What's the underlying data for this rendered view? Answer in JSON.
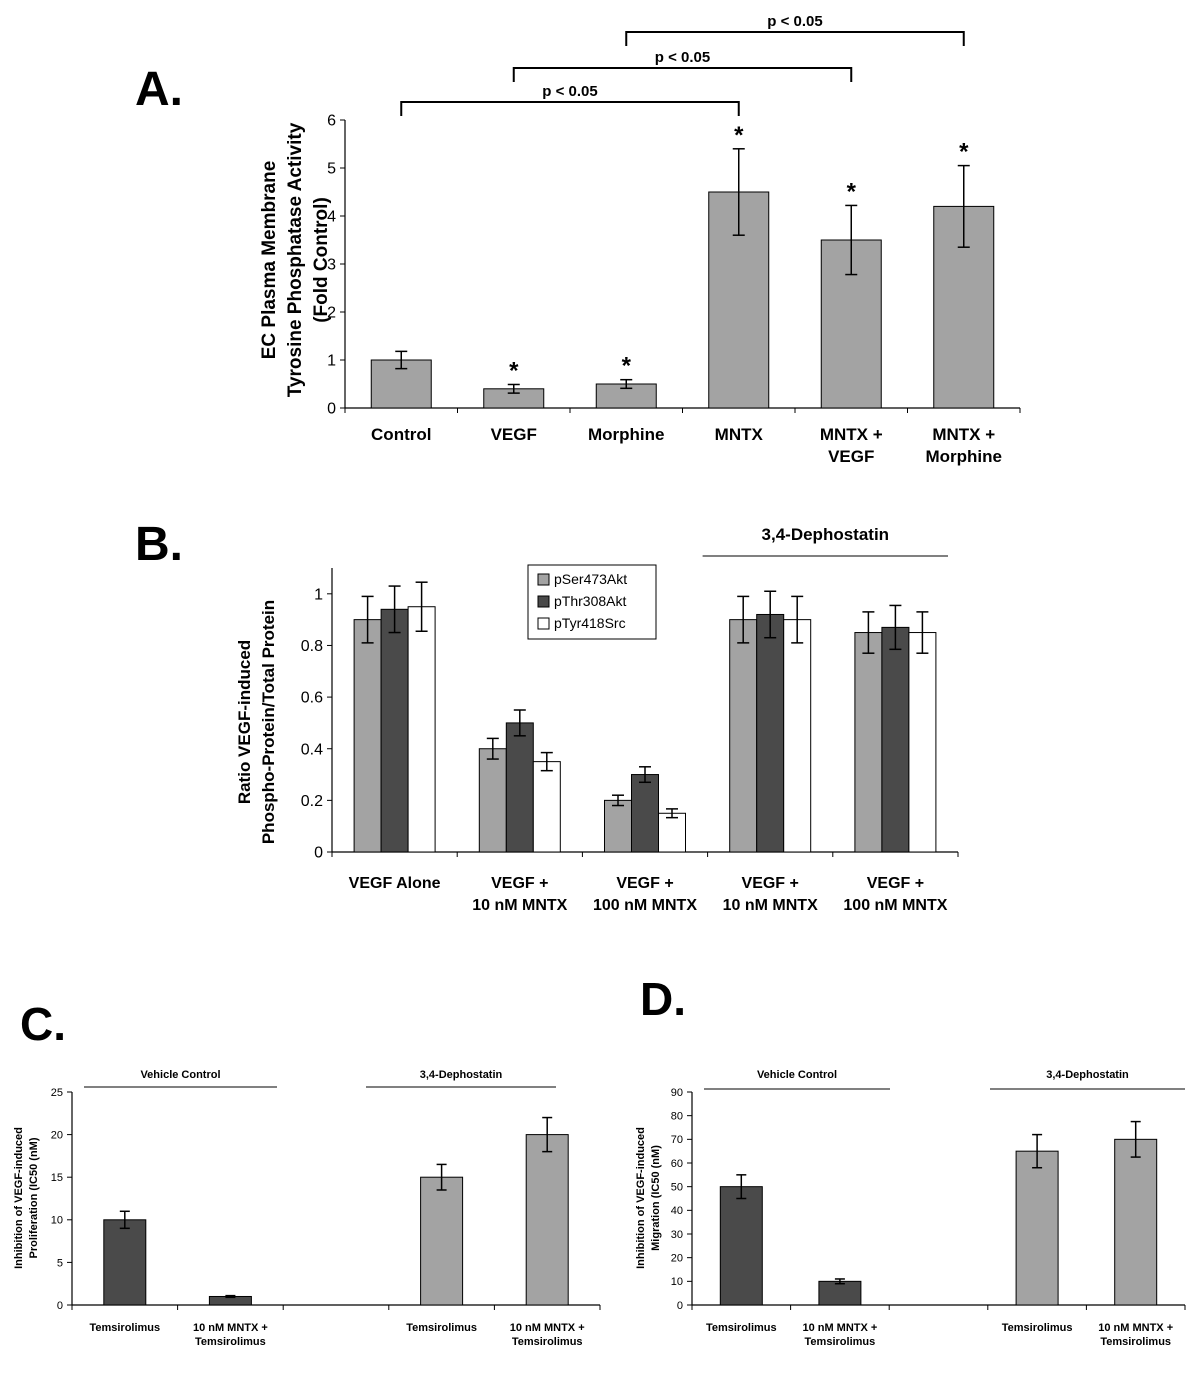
{
  "colors": {
    "light_gray": "#a3a3a3",
    "dark_gray": "#4a4a4a",
    "white": "#ffffff",
    "axis": "#000000"
  },
  "chart_data": [
    {
      "panel": "A.",
      "type": "bar",
      "ylabel": [
        "EC Plasma Membrane",
        "Tyrosine Phosphatase Activity",
        "(Fold Control)"
      ],
      "ylim": [
        0,
        6
      ],
      "yticks": [
        0,
        1,
        2,
        3,
        4,
        5,
        6
      ],
      "categories": [
        [
          "Control"
        ],
        [
          "VEGF"
        ],
        [
          "Morphine"
        ],
        [
          "MNTX"
        ],
        [
          "MNTX +",
          "VEGF"
        ],
        [
          "MNTX +",
          "Morphine"
        ]
      ],
      "series": [
        {
          "name": "Activity",
          "color": "#a3a3a3",
          "values": [
            1.0,
            0.4,
            0.5,
            4.5,
            3.5,
            4.2
          ],
          "errors": [
            0.18,
            0.09,
            0.09,
            0.9,
            0.72,
            0.85
          ]
        }
      ],
      "annotations": [
        "",
        "*",
        "*",
        "*",
        "*",
        "*"
      ],
      "brackets": [
        {
          "from": 0,
          "to": 3,
          "label": "p < 0.05"
        },
        {
          "from": 1,
          "to": 4,
          "label": "p < 0.05"
        },
        {
          "from": 2,
          "to": 5,
          "label": "p < 0.05"
        }
      ]
    },
    {
      "panel": "B.",
      "type": "bar",
      "ylabel": [
        "Ratio VEGF-induced",
        "Phospho-Protein/Total Protein"
      ],
      "ylim": [
        0,
        1.1
      ],
      "yticks": [
        0,
        0.2,
        0.4,
        0.6,
        0.8,
        1
      ],
      "categories": [
        [
          "VEGF Alone"
        ],
        [
          "VEGF +",
          "10 nM MNTX"
        ],
        [
          "VEGF +",
          "100 nM MNTX"
        ],
        [
          "VEGF +",
          "10 nM MNTX"
        ],
        [
          "VEGF +",
          "100 nM MNTX"
        ]
      ],
      "group_label": {
        "text": "3,4-Dephostatin",
        "from": 3,
        "to": 4
      },
      "legend_position": "top-center",
      "series": [
        {
          "name": "pSer473Akt",
          "color": "#a3a3a3",
          "values": [
            0.9,
            0.4,
            0.2,
            0.9,
            0.85
          ],
          "errors": [
            0.09,
            0.04,
            0.02,
            0.09,
            0.08
          ]
        },
        {
          "name": "pThr308Akt",
          "color": "#4a4a4a",
          "values": [
            0.94,
            0.5,
            0.3,
            0.92,
            0.87
          ],
          "errors": [
            0.09,
            0.05,
            0.03,
            0.09,
            0.085
          ]
        },
        {
          "name": "pTyr418Src",
          "color": "#ffffff",
          "values": [
            0.95,
            0.35,
            0.15,
            0.9,
            0.85
          ],
          "errors": [
            0.095,
            0.035,
            0.017,
            0.09,
            0.08
          ]
        }
      ]
    },
    {
      "panel": "C.",
      "type": "bar",
      "ylabel": [
        "Inhibition of VEGF-induced",
        "Proliferation (IC50 (nM)"
      ],
      "ylim": [
        0,
        25
      ],
      "yticks": [
        0,
        5,
        10,
        15,
        20,
        25
      ],
      "categories": [
        [
          "Temsirolimus"
        ],
        [
          "10 nM MNTX +",
          "Temsirolimus"
        ],
        [
          ""
        ],
        [
          "Temsirolimus"
        ],
        [
          "10 nM MNTX +",
          "Temsirolimus"
        ]
      ],
      "group_labels": [
        {
          "text": "Vehicle Control",
          "from": 0,
          "to": 1
        },
        {
          "text": "3,4-Dephostatin",
          "from": 3,
          "to": 4
        }
      ],
      "series": [
        {
          "name": "IC50",
          "values": [
            10,
            1,
            null,
            15,
            20
          ],
          "errors": [
            1.0,
            0.1,
            null,
            1.5,
            2.0
          ],
          "colors": [
            "#4a4a4a",
            "#4a4a4a",
            "",
            "#a3a3a3",
            "#a3a3a3"
          ]
        }
      ]
    },
    {
      "panel": "D.",
      "type": "bar",
      "ylabel": [
        "Inhibition of VEGF-induced",
        "Migration (IC50 (nM)"
      ],
      "ylim": [
        0,
        90
      ],
      "yticks": [
        0,
        10,
        20,
        30,
        40,
        50,
        60,
        70,
        80,
        90
      ],
      "categories": [
        [
          "Temsirolimus"
        ],
        [
          "10 nM MNTX +",
          "Temsirolimus"
        ],
        [
          ""
        ],
        [
          "Temsirolimus"
        ],
        [
          "10 nM MNTX +",
          "Temsirolimus"
        ]
      ],
      "group_labels": [
        {
          "text": "Vehicle Control",
          "from": 0,
          "to": 1
        },
        {
          "text": "3,4-Dephostatin",
          "from": 3,
          "to": 4
        }
      ],
      "series": [
        {
          "name": "IC50",
          "values": [
            50,
            10,
            null,
            65,
            70
          ],
          "errors": [
            5,
            1,
            null,
            7,
            7.5
          ],
          "colors": [
            "#4a4a4a",
            "#4a4a4a",
            "",
            "#a3a3a3",
            "#a3a3a3"
          ]
        }
      ]
    }
  ]
}
